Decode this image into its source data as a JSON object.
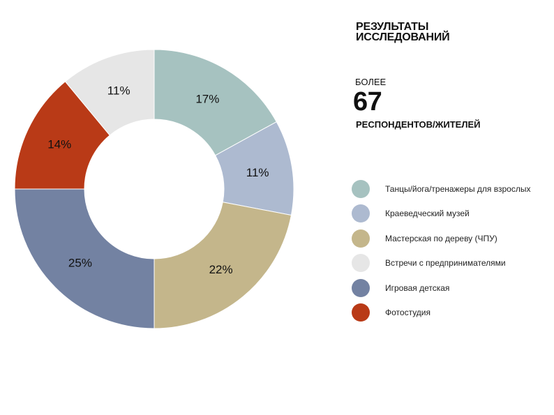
{
  "header": {
    "title": "РЕЗУЛЬТАТЫ ИССЛЕДОВАНИЙ",
    "stat_prefix": "БОЛЕЕ",
    "stat_number": "67",
    "stat_suffix": "РЕСПОНДЕНТОВ/ЖИТЕЛЕЙ"
  },
  "chart_data": {
    "type": "pie",
    "variant": "donut",
    "grid": false,
    "legend_placement": "right",
    "categories": [
      "Танцы/йога/тренажеры для взрослых",
      "Краеведческий музей",
      "Мастерская по дереву (ЧПУ)",
      "Встречи с предпринимателями",
      "Игровая детская",
      "Фотостудия"
    ],
    "values": [
      17,
      11,
      22,
      11,
      25,
      14
    ],
    "labels": [
      "17%",
      "11%",
      "22%",
      "11%",
      "25%",
      "14%"
    ],
    "slice_order": [
      0,
      1,
      2,
      4,
      5,
      3
    ],
    "colors": [
      "#a6c2c0",
      "#adbad0",
      "#c4b68b",
      "#e6e6e6",
      "#7382a2",
      "#b93a17"
    ]
  }
}
